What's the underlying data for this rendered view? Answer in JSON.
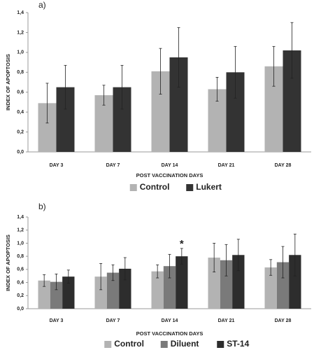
{
  "chart_data": [
    {
      "type": "bar",
      "panel_label": "a)",
      "ylabel": "INDEX OF APOPTOSIS",
      "xlabel": "POST VACCINATION DAYS",
      "categories": [
        "DAY 3",
        "DAY 7",
        "DAY 14",
        "DAY 21",
        "DAY 28"
      ],
      "series": [
        {
          "name": "Control",
          "color": "#b3b3b3",
          "values": [
            0.49,
            0.57,
            0.81,
            0.63,
            0.86
          ],
          "errors": [
            0.2,
            0.1,
            0.23,
            0.12,
            0.2
          ]
        },
        {
          "name": "Lukert",
          "color": "#333333",
          "values": [
            0.65,
            0.65,
            0.95,
            0.8,
            1.02
          ],
          "errors": [
            0.22,
            0.22,
            0.3,
            0.26,
            0.28
          ]
        }
      ],
      "ylim": [
        0,
        1.4
      ],
      "yticks": [
        {
          "value": 0,
          "label": "0,0"
        },
        {
          "value": 0.2,
          "label": "0,2"
        },
        {
          "value": 0.4,
          "label": "0,4"
        },
        {
          "value": 0.6,
          "label": "0,6"
        },
        {
          "value": 0.8,
          "label": "0,8"
        },
        {
          "value": 1,
          "label": "1,0"
        },
        {
          "value": 1.2,
          "label": "1,2"
        },
        {
          "value": 1.4,
          "label": "1,4"
        }
      ]
    },
    {
      "type": "bar",
      "panel_label": "b)",
      "ylabel": "INDEX OF APOPTOSIS",
      "xlabel": "POST VACCINATION DAYS",
      "categories": [
        "DAY 3",
        "DAY 7",
        "DAY 14",
        "DAY 21",
        "DAY 28"
      ],
      "series": [
        {
          "name": "Control",
          "color": "#b3b3b3",
          "values": [
            0.43,
            0.49,
            0.57,
            0.78,
            0.63
          ],
          "errors": [
            0.09,
            0.2,
            0.1,
            0.22,
            0.12
          ]
        },
        {
          "name": "Diluent",
          "color": "#7a7a7a",
          "values": [
            0.41,
            0.55,
            0.65,
            0.74,
            0.71
          ],
          "errors": [
            0.12,
            0.12,
            0.18,
            0.24,
            0.24
          ]
        },
        {
          "name": "ST-14",
          "color": "#2d2d2d",
          "values": [
            0.49,
            0.61,
            0.8,
            0.82,
            0.82
          ],
          "errors": [
            0.1,
            0.17,
            0.12,
            0.24,
            0.32
          ]
        }
      ],
      "annotation": {
        "text": "*",
        "category": "DAY 14",
        "series": "ST-14"
      },
      "ylim": [
        0,
        1.4
      ],
      "yticks": [
        {
          "value": 0,
          "label": "0,0"
        },
        {
          "value": 0.2,
          "label": "0,2"
        },
        {
          "value": 0.4,
          "label": "0,4"
        },
        {
          "value": 0.6,
          "label": "0,6"
        },
        {
          "value": 0.8,
          "label": "0,8"
        },
        {
          "value": 1,
          "label": "1,0"
        },
        {
          "value": 1.2,
          "label": "1,2"
        },
        {
          "value": 1.4,
          "label": "1,4"
        }
      ]
    }
  ]
}
